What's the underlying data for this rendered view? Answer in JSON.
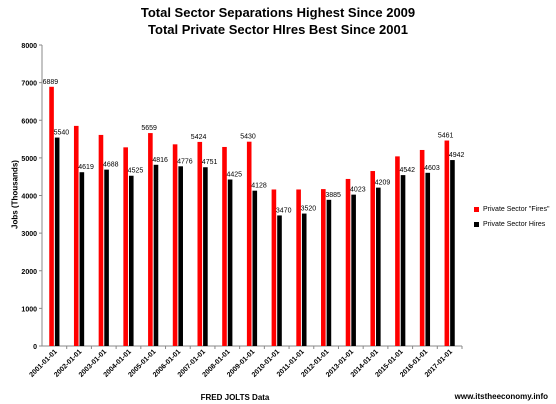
{
  "chart_data": {
    "type": "bar",
    "title": "Total  Sector Separations Highest Since 2009",
    "subtitle": "Total Private Sector HIres Best Since 2001",
    "xlabel": "FRED JOLTS Data",
    "ylabel": "Jobs (Thousands)",
    "ylim": [
      0,
      8000
    ],
    "yticks": [
      "0",
      "1000",
      "2000",
      "3000",
      "4000",
      "5000",
      "6000",
      "7000",
      "8000"
    ],
    "grid": false,
    "legend_position": "right",
    "categories": [
      "2001-01-01",
      "2002-01-01",
      "2003-01-01",
      "2004-01-01",
      "2005-01-01",
      "2006-01-01",
      "2007-01-01",
      "2008-01-01",
      "2009-01-01",
      "2010-01-01",
      "2011-01-01",
      "2012-01-01",
      "2013-01-01",
      "2014-01-01",
      "2015-01-01",
      "2016-01-01",
      "2017-01-01"
    ],
    "series": [
      {
        "name": "Private Sector \"Fires\"",
        "color": "#ff0000",
        "values": [
          6889,
          5850,
          5610,
          5280,
          5659,
          5360,
          5424,
          5290,
          5430,
          4160,
          4160,
          4170,
          4440,
          4650,
          5040,
          5210,
          5461
        ],
        "labels": [
          "6889",
          "",
          "",
          "",
          "5659",
          "",
          "5424",
          "",
          "5430",
          "",
          "",
          "",
          "",
          "",
          "",
          "",
          "5461"
        ]
      },
      {
        "name": "Private Sector Hires",
        "color": "#000000",
        "values": [
          5540,
          4619,
          4688,
          4525,
          4816,
          4776,
          4751,
          4425,
          4128,
          3470,
          3520,
          3885,
          4023,
          4209,
          4542,
          4603,
          4942
        ],
        "labels": [
          "5540",
          "4619",
          "4688",
          "4525",
          "4816",
          "4776",
          "4751",
          "4425",
          "4128",
          "3470",
          "3520",
          "3885",
          "4023",
          "4209",
          "4542",
          "4603",
          "4942"
        ]
      }
    ]
  },
  "source_text": "www.itstheeconomy.info"
}
